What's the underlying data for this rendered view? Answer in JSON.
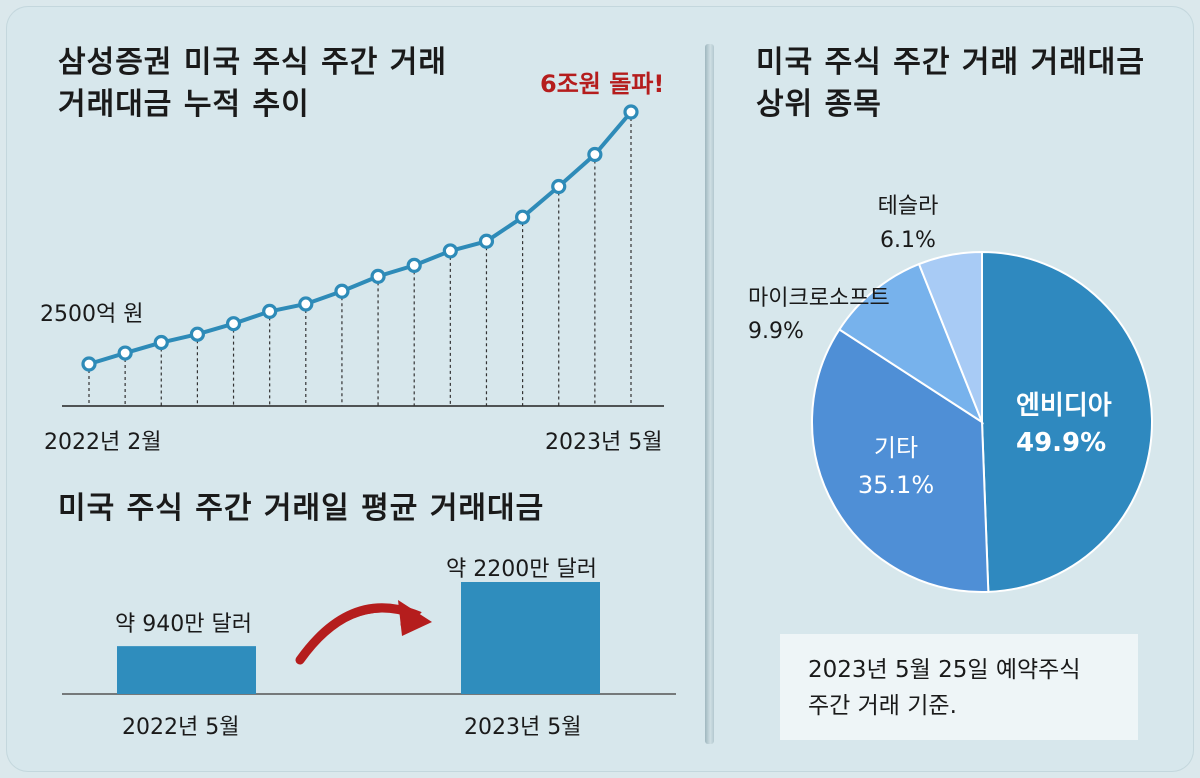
{
  "colors": {
    "line": "#2e8bb8",
    "bar": "#2f8dbd",
    "highlight": "#b51d1d",
    "pie_nvidia": "#2f89bf",
    "pie_other": "#4f8fd6",
    "pie_msft": "#77b2ec",
    "pie_tesla": "#a8cbf5"
  },
  "left_top": {
    "title_line1": "삼성증권 미국 주식 주간 거래",
    "title_line2": "거래대금 누적 추이",
    "start_value_label": "2500억 원",
    "end_value_label": "6조원 돌파!",
    "start_date": "2022년 2월",
    "end_date": "2023년 5월"
  },
  "left_bottom": {
    "title": "미국 주식 주간 거래일 평균 거래대금",
    "bar1_value_label": "약 940만 달러",
    "bar2_value_label": "약 2200만 달러",
    "bar1_category": "2022년 5월",
    "bar2_category": "2023년 5월"
  },
  "right": {
    "title_line1": "미국 주식 주간 거래 거래대금",
    "title_line2": "상위 종목",
    "note_line1": "2023년 5월 25일 예약주식",
    "note_line2": "주간 거래 기준."
  },
  "chart_data": [
    {
      "type": "line",
      "title": "삼성증권 미국 주식 주간 거래 거래대금 누적 추이",
      "x": [
        "2022년 2월",
        "",
        "",
        "",
        "",
        "",
        "",
        "",
        "",
        "",
        "",
        "",
        "",
        "",
        "",
        "2023년 5월"
      ],
      "series": [
        {
          "values": [
            0.25,
            0.5,
            0.74,
            0.93,
            1.17,
            1.45,
            1.62,
            1.91,
            2.25,
            2.5,
            2.83,
            3.05,
            3.6,
            4.3,
            5.03,
            6.0
          ]
        }
      ],
      "annotations": [
        "2500억 원",
        "6조원 돌파!"
      ]
    },
    {
      "type": "bar",
      "title": "미국 주식 주간 거래일 평균 거래대금",
      "categories": [
        "2022년 5월",
        "2023년 5월"
      ],
      "values": [
        940,
        2200
      ],
      "value_labels": [
        "약 940만 달러",
        "약 2200만 달러"
      ]
    },
    {
      "type": "pie",
      "title": "미국 주식 주간 거래 거래대금 상위 종목",
      "slices": [
        {
          "label": "엔비디아",
          "value": 49.9,
          "value_label": "49.9%"
        },
        {
          "label": "기타",
          "value": 35.1,
          "value_label": "35.1%"
        },
        {
          "label": "마이크로소프트",
          "value": 9.9,
          "value_label": "9.9%"
        },
        {
          "label": "테슬라",
          "value": 6.1,
          "value_label": "6.1%"
        }
      ]
    }
  ]
}
